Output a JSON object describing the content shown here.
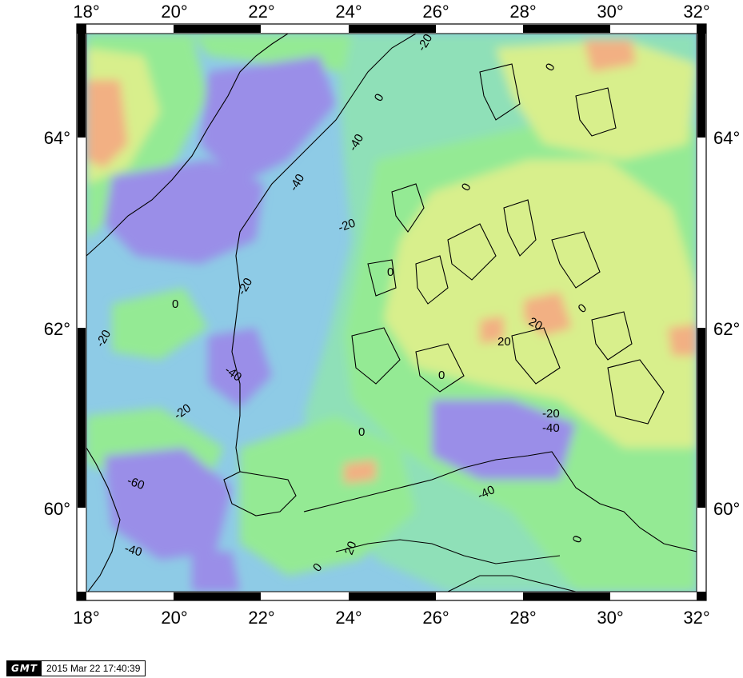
{
  "map": {
    "lon_ticks": [
      "18°",
      "20°",
      "22°",
      "24°",
      "26°",
      "28°",
      "30°",
      "32°"
    ],
    "lat_ticks": [
      "60°",
      "62°",
      "64°"
    ],
    "contour_labels": [
      "0",
      "-20",
      "-40",
      "-60",
      "20"
    ],
    "colors": {
      "purple": "#9a8ee8",
      "blue": "#8ecbe6",
      "teal": "#8fe0b8",
      "green": "#94ea94",
      "yellow": "#d8ef8c",
      "orange": "#f2b083",
      "coast": "#000000"
    }
  },
  "stamp": {
    "logo": "GMT",
    "timestamp": "2015 Mar 22 17:40:39"
  }
}
